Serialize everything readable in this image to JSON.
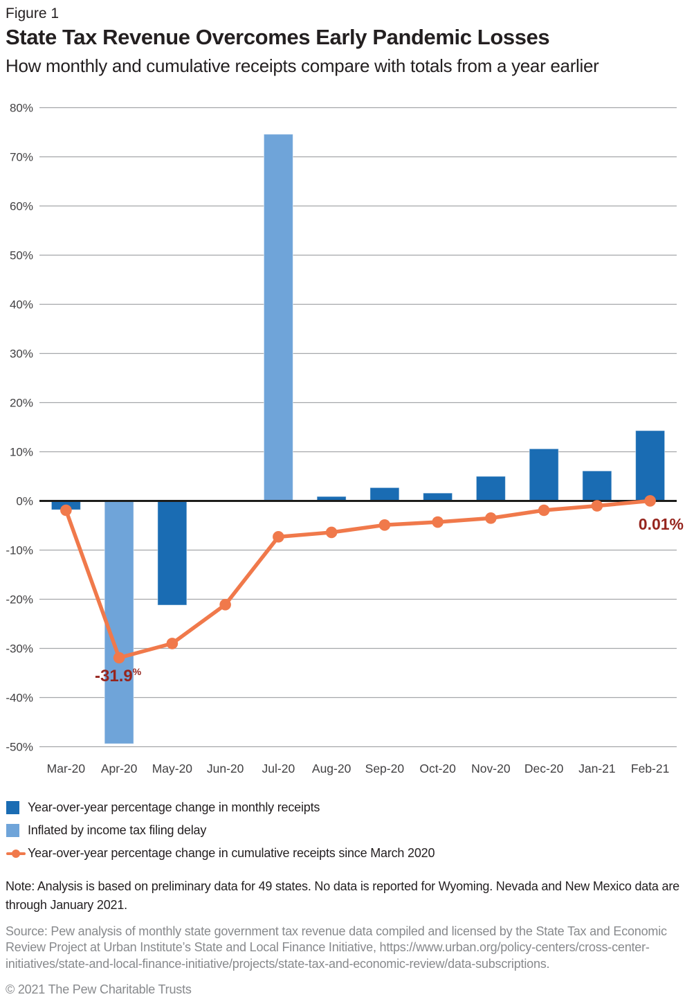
{
  "figure_label": "Figure 1",
  "colors": {
    "monthly_bar": "#1a6cb3",
    "inflated_bar": "#6fa4d9",
    "cumulative_line": "#f0794b",
    "annotation": "#96251e",
    "gridline": "#a4a6a9",
    "zero_line": "#1d1d1b",
    "axis_text": "#414042",
    "body_text": "#231f20",
    "muted_text": "#87898c"
  },
  "chart_data": {
    "type": "bar",
    "title": "State Tax Revenue Overcomes Early Pandemic Losses",
    "subtitle": "How monthly and cumulative receipts compare with totals from a year earlier",
    "xlabel": "",
    "ylabel": "",
    "categories": [
      "Mar-20",
      "Apr-20",
      "May-20",
      "Jun-20",
      "Jul-20",
      "Aug-20",
      "Sep-20",
      "Oct-20",
      "Nov-20",
      "Dec-20",
      "Jan-21",
      "Feb-21"
    ],
    "series": [
      {
        "name": "Year-over-year percentage change in monthly receipts",
        "type": "bar",
        "values": [
          -1.8,
          -49.4,
          -21.2,
          0.0,
          74.6,
          0.9,
          2.7,
          1.6,
          5.0,
          10.6,
          6.1,
          14.3
        ],
        "inflated": [
          false,
          true,
          false,
          false,
          true,
          false,
          false,
          false,
          false,
          false,
          false,
          false
        ]
      },
      {
        "name": "Year-over-year percentage change in cumulative receipts since March 2020",
        "type": "line",
        "values": [
          -1.9,
          -31.9,
          -29.0,
          -21.1,
          -7.3,
          -6.4,
          -4.9,
          -4.3,
          -3.5,
          -1.9,
          -1.0,
          0.01
        ]
      }
    ],
    "y_axis": {
      "range": [
        -50,
        80
      ],
      "grid": true,
      "ticks": [
        {
          "label": "80%",
          "value": 80
        },
        {
          "label": "70%",
          "value": 70
        },
        {
          "label": "60%",
          "value": 60
        },
        {
          "label": "50%",
          "value": 50
        },
        {
          "label": "40%",
          "value": 40
        },
        {
          "label": "30%",
          "value": 30
        },
        {
          "label": "20%",
          "value": 20
        },
        {
          "label": "10%",
          "value": 10
        },
        {
          "label": "0%",
          "value": 0
        },
        {
          "label": "-10%",
          "value": -10
        },
        {
          "label": "-20%",
          "value": -20
        },
        {
          "label": "-30%",
          "value": -30
        },
        {
          "label": "-40%",
          "value": -40
        },
        {
          "label": "-50%",
          "value": -50
        }
      ]
    },
    "annotations": [
      {
        "id": "april-cumulative-low",
        "category": "Apr-20",
        "value": "-31.9",
        "suffix": "%"
      },
      {
        "id": "february-cumulative-final",
        "category": "Feb-21",
        "value": "0.01%",
        "suffix": ""
      }
    ],
    "legend_position": "bottom-left"
  },
  "legend": {
    "items": [
      {
        "swatch": "monthly-bar",
        "label": "Year-over-year percentage change in monthly receipts"
      },
      {
        "swatch": "inflated-bar",
        "label": "Inflated by income tax filing delay"
      },
      {
        "swatch": "cumulative-line",
        "label": "Year-over-year percentage change in cumulative receipts since March 2020"
      }
    ]
  },
  "note": "Note: Analysis is based on preliminary data for 49 states. No data is reported for Wyoming. Nevada and New Mexico data are through January 2021.",
  "source": "Source: Pew analysis of monthly state government tax revenue data compiled and licensed by the State Tax and Economic Review Project at Urban Institute’s State and Local Finance Initiative, https://www.urban.org/policy-centers/cross-center-initiatives/state-and-local-finance-initiative/projects/state-tax-and-economic-review/data-subscriptions.",
  "copyright": "© 2021 The Pew Charitable Trusts"
}
